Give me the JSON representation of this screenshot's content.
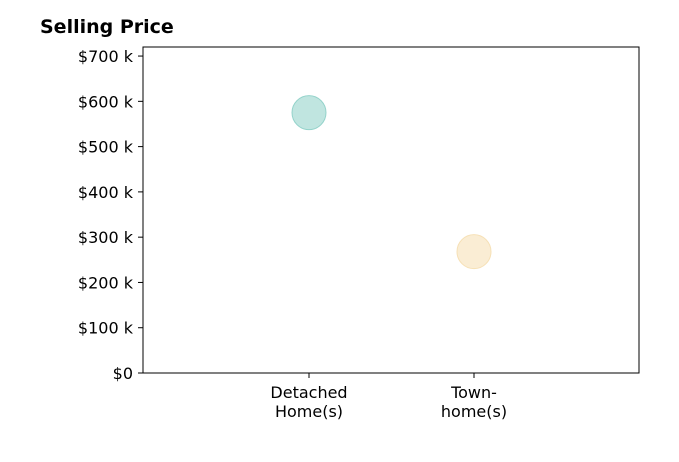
{
  "chart_data": {
    "type": "scatter",
    "title": "Selling Price",
    "xlabel": "",
    "ylabel": "",
    "categories": [
      [
        "Detached",
        "Home(s)"
      ],
      [
        "Town-",
        "home(s)"
      ]
    ],
    "points": [
      {
        "category_index": 0,
        "value": 575000,
        "color": "#8ccfc6"
      },
      {
        "category_index": 1,
        "value": 268000,
        "color": "#f5deb0"
      }
    ],
    "yticks": [
      0,
      100000,
      200000,
      300000,
      400000,
      500000,
      600000,
      700000
    ],
    "ytick_labels": [
      "$0",
      "$100 k",
      "$200 k",
      "$300 k",
      "$400 k",
      "$500 k",
      "$600 k",
      "$700 k"
    ],
    "ylim": [
      0,
      720000
    ],
    "grid": false,
    "marker_opacity": 0.55
  }
}
